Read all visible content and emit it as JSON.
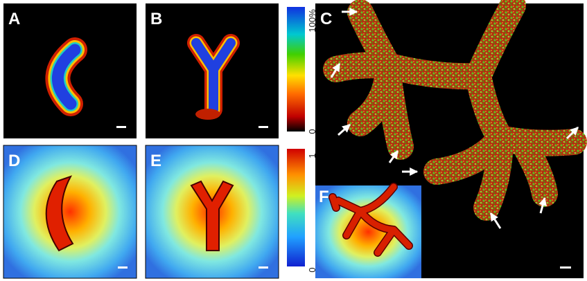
{
  "panels": [
    {
      "label": "A"
    },
    {
      "label": "B"
    },
    {
      "label": "C"
    },
    {
      "label": "D"
    },
    {
      "label": "E"
    },
    {
      "label": "F"
    }
  ],
  "colorbars": [
    {
      "top": "100%",
      "bottom": "0"
    },
    {
      "top": "1",
      "bottom": "0"
    }
  ]
}
